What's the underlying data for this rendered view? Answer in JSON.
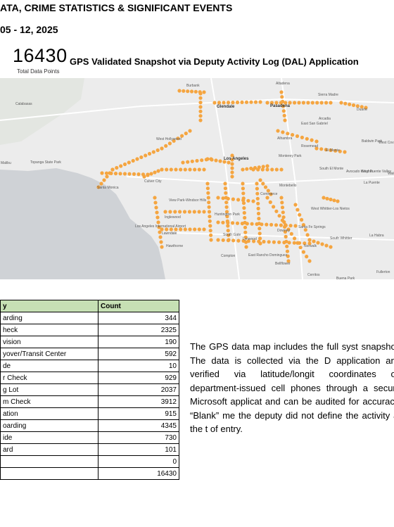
{
  "header": {
    "line1": "ATA, CRIME STATISTICS & SIGNIFICANT EVENTS",
    "line2": "05 - 12, 2025"
  },
  "snapshot": {
    "total": "16430",
    "total_label": "Total Data Points",
    "title": "GPS Validated Snapshot via Deputy Activity Log (DAL) Application"
  },
  "map": {
    "dot_color": "#f5a540",
    "land_color": "#ececec",
    "water_color": "#cfd2d6",
    "labels": [
      "Burbank",
      "Calabasas",
      "Glendale",
      "Pasadena",
      "Altadena",
      "Sierra Madre",
      "Arcadia",
      "Duarte",
      "East San Gabriel",
      "Rosemead",
      "Baldwin Park",
      "West Covina",
      "El Monte",
      "Alhambra",
      "West Hollywood",
      "Topanga State Park",
      "Culver City",
      "Los Angeles",
      "Monterey Park",
      "South El Monte",
      "Avocado Heights",
      "West Puente Valley",
      "La Puente",
      "Walnut",
      "Malibu",
      "Santa Monica",
      "View Park-Windsor Hills",
      "Montebello",
      "Los Angeles International Airport",
      "Inglewood",
      "Huntington Park",
      "Commerce",
      "West Whittier-Los Nietos",
      "South Gate",
      "Lawndale",
      "Hawthorne",
      "Lynwood",
      "Downey",
      "Santa Fe Springs",
      "Norwalk",
      "South Whittier",
      "La Habra",
      "Fullerton",
      "Compton",
      "East Rancho Dominguez",
      "Bellflower",
      "Cerritos",
      "Buena Park"
    ]
  },
  "table": {
    "headers": [
      "y",
      "Count"
    ],
    "rows": [
      {
        "label": "arding",
        "count": "344"
      },
      {
        "label": "heck",
        "count": "2325"
      },
      {
        "label": "vision",
        "count": "190"
      },
      {
        "label": "yover/Transit Center",
        "count": "592"
      },
      {
        "label": "de",
        "count": "10"
      },
      {
        "label": "r Check",
        "count": "929"
      },
      {
        "label": "g Lot",
        "count": "2037"
      },
      {
        "label": "m Check",
        "count": "3912"
      },
      {
        "label": "ation",
        "count": "915"
      },
      {
        "label": "oarding",
        "count": "4345"
      },
      {
        "label": "ide",
        "count": "730"
      },
      {
        "label": "ard",
        "count": "101"
      },
      {
        "label": "",
        "count": "0"
      },
      {
        "label": "",
        "count": "16430"
      }
    ]
  },
  "description": "The GPS data map includes the full syst snapshot. The data is collected via the D application and verified via latitude/longit coordinates on department-issued cell phones through a secure Microsoft applicat and can be audited for accuracy. “Blank” me the deputy did not define the activity at the t of entry."
}
